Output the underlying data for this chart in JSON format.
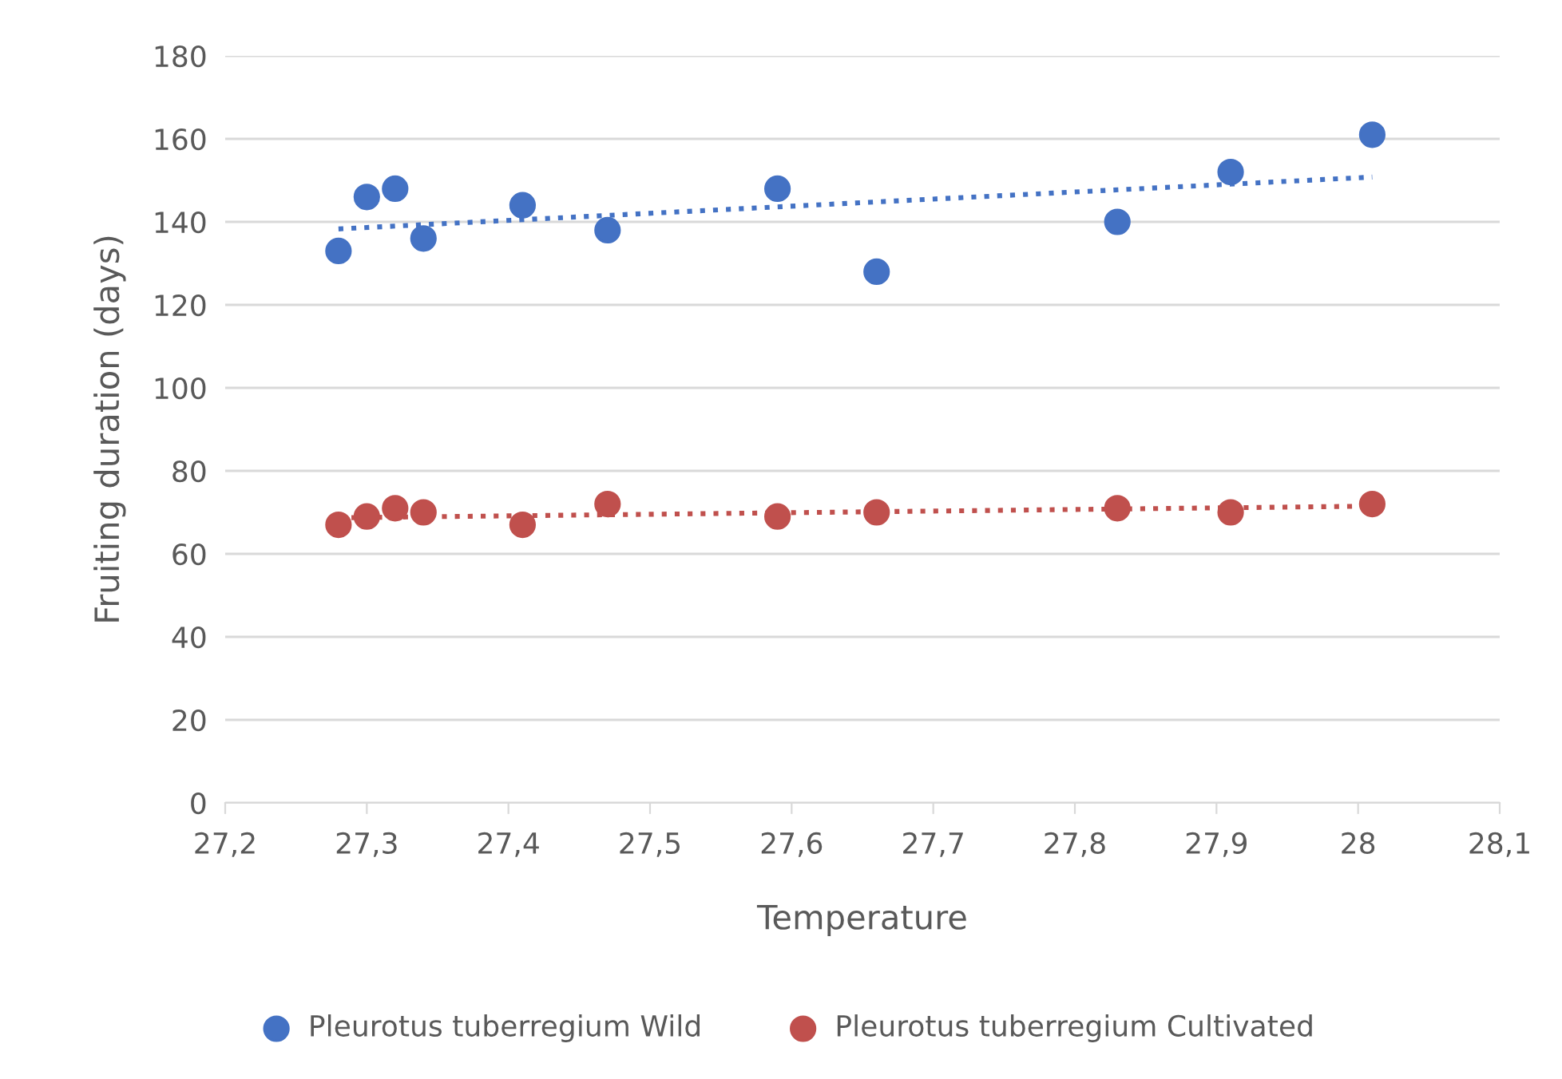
{
  "chart_data": {
    "type": "scatter",
    "xlabel": "Temperature",
    "ylabel": "Fruiting duration (days)",
    "xlim": [
      27.2,
      28.1
    ],
    "xticks": [
      {
        "value": 27.2,
        "label": "27,2"
      },
      {
        "value": 27.3,
        "label": "27,3"
      },
      {
        "value": 27.4,
        "label": "27,4"
      },
      {
        "value": 27.5,
        "label": "27,5"
      },
      {
        "value": 27.6,
        "label": "27,6"
      },
      {
        "value": 27.7,
        "label": "27,7"
      },
      {
        "value": 27.8,
        "label": "27,8"
      },
      {
        "value": 27.9,
        "label": "27,9"
      },
      28,
      {
        "value": 28.1,
        "label": "28,1"
      }
    ],
    "ylim": [
      0,
      180
    ],
    "yticks": [
      0,
      20,
      40,
      60,
      80,
      100,
      120,
      140,
      160,
      180
    ],
    "grid": "y",
    "legend": "bottom",
    "marker": "circle",
    "series": [
      {
        "name": "Pleurotus tuberregium Wild",
        "color": "#4472c4",
        "x": [
          27.28,
          27.3,
          27.32,
          27.34,
          27.41,
          27.47,
          27.59,
          27.66,
          27.83,
          27.91,
          28.01
        ],
        "values": [
          133,
          146,
          148,
          136,
          144,
          138,
          148,
          128,
          140,
          152,
          161
        ]
      },
      {
        "name": "Pleurotus tuberregium Cultivated",
        "color": "#c0504d",
        "x": [
          27.28,
          27.3,
          27.32,
          27.34,
          27.41,
          27.47,
          27.59,
          27.66,
          27.83,
          27.91,
          28.01
        ],
        "values": [
          67,
          69,
          71,
          70,
          67,
          72,
          69,
          70,
          71,
          70,
          72
        ]
      },
      {
        "type": "line",
        "color": "#4472c4",
        "line_style": "dotted",
        "marker": "none",
        "x": [
          27.28,
          28.01
        ],
        "values": [
          138.3,
          150.8
        ]
      },
      {
        "type": "line",
        "color": "#c0504d",
        "line_style": "dotted",
        "marker": "none",
        "x": [
          27.28,
          28.01
        ],
        "values": [
          68.7,
          71.5
        ]
      }
    ]
  }
}
